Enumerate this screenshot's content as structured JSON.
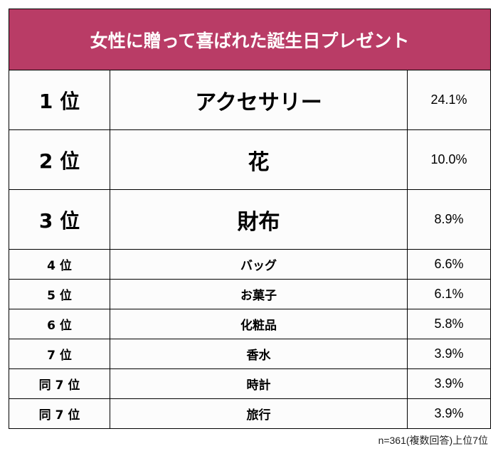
{
  "title": "女性に贈って喜ばれた誕生日プレゼント",
  "colors": {
    "header_bg": "#b93c66",
    "header_text": "#ffffff"
  },
  "chart_data": {
    "type": "table",
    "title": "女性に贈って喜ばれた誕生日プレゼント",
    "rows": [
      {
        "rank": "1 位",
        "item": "アクセサリー",
        "percent": "24.1%",
        "value": 24.1
      },
      {
        "rank": "2 位",
        "item": "花",
        "percent": "10.0%",
        "value": 10.0
      },
      {
        "rank": "3 位",
        "item": "財布",
        "percent": "8.9%",
        "value": 8.9
      },
      {
        "rank": "4 位",
        "item": "バッグ",
        "percent": "6.6%",
        "value": 6.6
      },
      {
        "rank": "5 位",
        "item": "お菓子",
        "percent": "6.1%",
        "value": 6.1
      },
      {
        "rank": "6 位",
        "item": "化粧品",
        "percent": "5.8%",
        "value": 5.8
      },
      {
        "rank": "7 位",
        "item": "香水",
        "percent": "3.9%",
        "value": 3.9
      },
      {
        "rank": "同 7 位",
        "item": "時計",
        "percent": "3.9%",
        "value": 3.9
      },
      {
        "rank": "同 7 位",
        "item": "旅行",
        "percent": "3.9%",
        "value": 3.9
      }
    ],
    "footnote": "n=361(複数回答)上位7位"
  }
}
